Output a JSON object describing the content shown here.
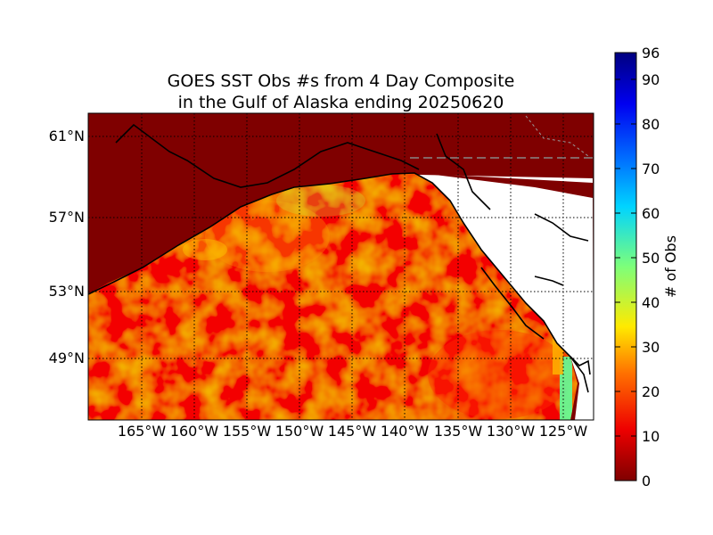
{
  "title": {
    "line1": "GOES SST Obs #s from 4 Day Composite",
    "line2": "in the Gulf of Alaska ending 20250620"
  },
  "map": {
    "region": "Gulf of Alaska",
    "lat_labels": [
      "61°N",
      "57°N",
      "53°N",
      "49°N"
    ],
    "lon_labels": [
      "165°W",
      "160°W",
      "155°W",
      "150°W",
      "145°W",
      "140°W",
      "135°W",
      "130°W",
      "125°W"
    ],
    "land_color": "#7f0000",
    "no_data_color": "#ffffff",
    "gridlines": true
  },
  "colorbar": {
    "label": "# of Obs",
    "range": [
      0,
      96
    ],
    "ticks": [
      "0",
      "10",
      "20",
      "30",
      "40",
      "50",
      "60",
      "70",
      "80",
      "90",
      "96"
    ],
    "colormap": "jet_r"
  }
}
